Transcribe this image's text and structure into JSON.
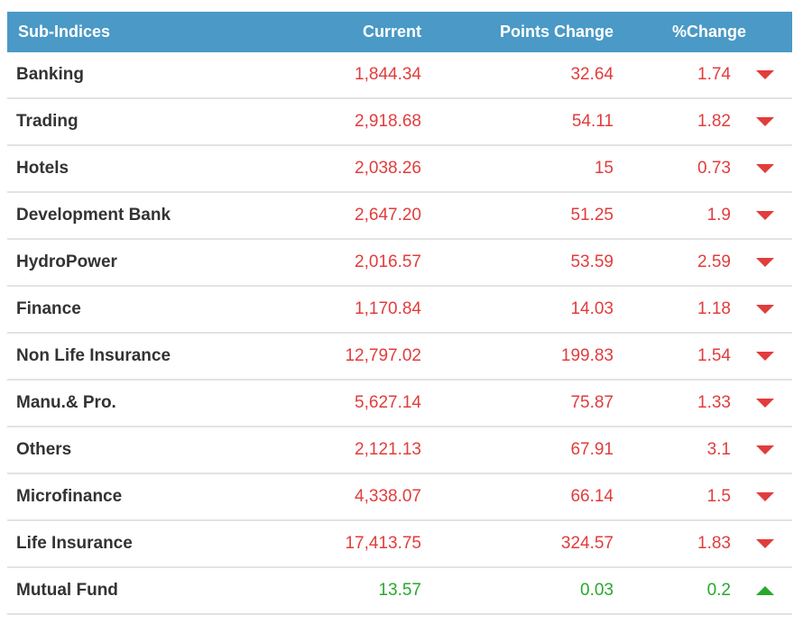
{
  "table": {
    "columns": [
      {
        "label": "Sub-Indices"
      },
      {
        "label": "Current"
      },
      {
        "label": "Points Change"
      },
      {
        "label": "%Change"
      }
    ],
    "rows": [
      {
        "name": "Banking",
        "current": "1,844.34",
        "points_change": "32.64",
        "pct_change": "1.74",
        "direction": "down"
      },
      {
        "name": "Trading",
        "current": "2,918.68",
        "points_change": "54.11",
        "pct_change": "1.82",
        "direction": "down"
      },
      {
        "name": "Hotels",
        "current": "2,038.26",
        "points_change": "15",
        "pct_change": "0.73",
        "direction": "down"
      },
      {
        "name": "Development Bank",
        "current": "2,647.20",
        "points_change": "51.25",
        "pct_change": "1.9",
        "direction": "down"
      },
      {
        "name": "HydroPower",
        "current": "2,016.57",
        "points_change": "53.59",
        "pct_change": "2.59",
        "direction": "down"
      },
      {
        "name": "Finance",
        "current": "1,170.84",
        "points_change": "14.03",
        "pct_change": "1.18",
        "direction": "down"
      },
      {
        "name": "Non Life Insurance",
        "current": "12,797.02",
        "points_change": "199.83",
        "pct_change": "1.54",
        "direction": "down"
      },
      {
        "name": "Manu.& Pro.",
        "current": "5,627.14",
        "points_change": "75.87",
        "pct_change": "1.33",
        "direction": "down"
      },
      {
        "name": "Others",
        "current": "2,121.13",
        "points_change": "67.91",
        "pct_change": "3.1",
        "direction": "down"
      },
      {
        "name": "Microfinance",
        "current": "4,338.07",
        "points_change": "66.14",
        "pct_change": "1.5",
        "direction": "down"
      },
      {
        "name": "Life Insurance",
        "current": "17,413.75",
        "points_change": "324.57",
        "pct_change": "1.83",
        "direction": "down"
      },
      {
        "name": "Mutual Fund",
        "current": "13.57",
        "points_change": "0.03",
        "pct_change": "0.2",
        "direction": "up"
      }
    ]
  },
  "colors": {
    "header_bg": "#4a99c6",
    "header_text": "#ffffff",
    "down": "#e23c3c",
    "up": "#28a82d",
    "label": "#333333",
    "separator": "#e3e3e3"
  },
  "icons": {
    "down": "down-arrow-icon",
    "up": "up-arrow-icon"
  }
}
